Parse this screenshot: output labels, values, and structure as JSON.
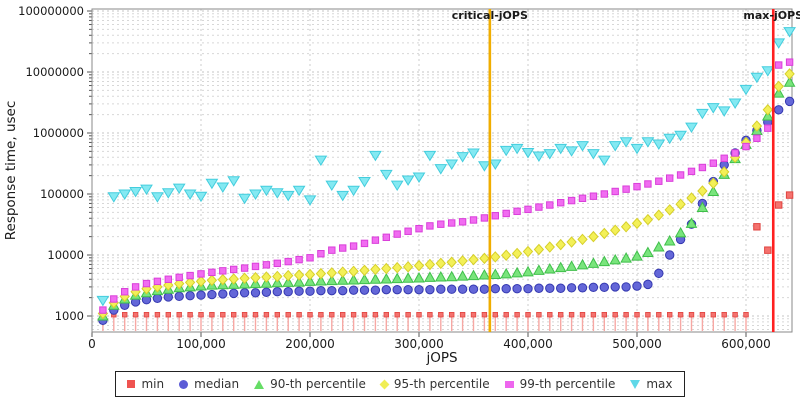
{
  "chart_data": {
    "type": "scatter",
    "title": "",
    "xlabel": "jOPS",
    "ylabel": "Response time, usec",
    "grid": true,
    "legend_position": "bottom",
    "x_scale": "linear",
    "y_scale": "log",
    "xlim": [
      0,
      642000
    ],
    "ylim": [
      547,
      126000000
    ],
    "x_ticks": [
      {
        "v": 0,
        "label": "0"
      },
      {
        "v": 100000,
        "label": "100,000"
      },
      {
        "v": 200000,
        "label": "200,000"
      },
      {
        "v": 300000,
        "label": "300,000"
      },
      {
        "v": 400000,
        "label": "400,000"
      },
      {
        "v": 500000,
        "label": "500,000"
      },
      {
        "v": 600000,
        "label": "600,000"
      }
    ],
    "y_ticks": [
      {
        "v": 1000,
        "label": "1000"
      },
      {
        "v": 10000,
        "label": "10000"
      },
      {
        "v": 100000,
        "label": "100000"
      },
      {
        "v": 1000000,
        "label": "1000000"
      },
      {
        "v": 10000000,
        "label": "10000000"
      },
      {
        "v": 100000000,
        "label": "100000000"
      }
    ],
    "vlines": [
      {
        "label": "critical-jOPS",
        "x": 365000,
        "color": "#f0ad00"
      },
      {
        "label": "max-jOPS",
        "x": 625000,
        "color": "#ff2020"
      }
    ],
    "x": [
      10000,
      20000,
      30000,
      40000,
      50000,
      60000,
      70000,
      80000,
      90000,
      100000,
      110000,
      120000,
      130000,
      140000,
      150000,
      160000,
      170000,
      180000,
      190000,
      200000,
      210000,
      220000,
      230000,
      240000,
      250000,
      260000,
      270000,
      280000,
      290000,
      300000,
      310000,
      320000,
      330000,
      340000,
      350000,
      360000,
      370000,
      380000,
      390000,
      400000,
      410000,
      420000,
      430000,
      440000,
      450000,
      460000,
      470000,
      480000,
      490000,
      500000,
      510000,
      520000,
      530000,
      540000,
      550000,
      560000,
      570000,
      580000,
      590000,
      600000,
      610000,
      620000,
      630000,
      640000
    ],
    "series": [
      {
        "name": "min",
        "marker": "pin-square",
        "fill": "#f4726e",
        "stroke": "#e04440",
        "stem": "#f7a8a4",
        "values": [
          1050,
          1050,
          1050,
          1050,
          1050,
          1050,
          1050,
          1050,
          1050,
          1050,
          1050,
          1050,
          1050,
          1050,
          1050,
          1050,
          1050,
          1050,
          1050,
          1050,
          1050,
          1050,
          1050,
          1050,
          1050,
          1050,
          1050,
          1050,
          1050,
          1050,
          1050,
          1050,
          1050,
          1050,
          1050,
          1050,
          1050,
          1050,
          1050,
          1050,
          1050,
          1050,
          1050,
          1050,
          1050,
          1050,
          1050,
          1050,
          1050,
          1050,
          1050,
          1050,
          1050,
          1050,
          1050,
          1050,
          1050,
          1050,
          1050,
          1050,
          29000,
          12000,
          66000,
          96000
        ]
      },
      {
        "name": "median",
        "marker": "circle",
        "fill": "#6467d8",
        "stroke": "#3438b0",
        "values": [
          850,
          1250,
          1500,
          1700,
          1850,
          1950,
          2050,
          2100,
          2150,
          2200,
          2250,
          2300,
          2350,
          2400,
          2400,
          2450,
          2500,
          2500,
          2550,
          2550,
          2600,
          2600,
          2600,
          2650,
          2650,
          2650,
          2700,
          2700,
          2700,
          2700,
          2700,
          2750,
          2750,
          2750,
          2750,
          2750,
          2800,
          2800,
          2800,
          2800,
          2850,
          2850,
          2850,
          2900,
          2900,
          2950,
          2950,
          3000,
          3000,
          3100,
          3300,
          5000,
          10000,
          18000,
          32000,
          70000,
          160000,
          300000,
          470000,
          760000,
          1100000,
          1500000,
          2400000,
          3300000
        ]
      },
      {
        "name": "90-th percentile",
        "marker": "triangle-up",
        "fill": "#79e47c",
        "stroke": "#3fbf4a",
        "values": [
          1000,
          1500,
          1900,
          2200,
          2400,
          2600,
          2750,
          2900,
          3000,
          3100,
          3200,
          3250,
          3300,
          3350,
          3400,
          3450,
          3500,
          3550,
          3600,
          3700,
          3750,
          3800,
          3850,
          3900,
          3950,
          4000,
          4050,
          4100,
          4150,
          4200,
          4300,
          4350,
          4400,
          4500,
          4600,
          4700,
          4800,
          4900,
          5100,
          5300,
          5600,
          5900,
          6200,
          6500,
          6900,
          7300,
          7800,
          8300,
          8900,
          9600,
          11000,
          13500,
          17000,
          23000,
          33000,
          60000,
          110000,
          210000,
          380000,
          650000,
          1100000,
          1900000,
          4500000,
          6800000
        ]
      },
      {
        "name": "95-th percentile",
        "marker": "diamond",
        "fill": "#f3f058",
        "stroke": "#d6cf2a",
        "values": [
          1100,
          1650,
          2100,
          2500,
          2800,
          3000,
          3200,
          3400,
          3550,
          3700,
          3850,
          3950,
          4050,
          4150,
          4250,
          4350,
          4450,
          4600,
          4700,
          4800,
          4950,
          5100,
          5250,
          5400,
          5600,
          5800,
          6000,
          6200,
          6400,
          6700,
          7000,
          7300,
          7600,
          8000,
          8400,
          8800,
          9300,
          9900,
          10600,
          11400,
          12300,
          13500,
          14800,
          16300,
          18000,
          20000,
          22500,
          25500,
          29000,
          33000,
          38000,
          45000,
          55000,
          68000,
          86000,
          112000,
          150000,
          230000,
          400000,
          700000,
          1300000,
          2400000,
          5800000,
          9300000
        ]
      },
      {
        "name": "99-th percentile",
        "marker": "square",
        "fill": "#f16cf1",
        "stroke": "#d93fd9",
        "values": [
          1250,
          1900,
          2500,
          3000,
          3400,
          3700,
          4000,
          4300,
          4600,
          4900,
          5200,
          5500,
          5800,
          6100,
          6500,
          6900,
          7300,
          7800,
          8400,
          9000,
          10500,
          12000,
          13000,
          14000,
          15500,
          17500,
          19500,
          22000,
          24500,
          27000,
          30000,
          32000,
          33500,
          35000,
          37500,
          40500,
          44000,
          48000,
          52000,
          56000,
          61000,
          66000,
          72000,
          78000,
          85000,
          92000,
          100000,
          110000,
          120000,
          132000,
          146000,
          162000,
          182000,
          205000,
          235000,
          272000,
          320000,
          385000,
          470000,
          600000,
          820000,
          1200000,
          13000000,
          14500000
        ]
      },
      {
        "name": "max",
        "marker": "triangle-down",
        "fill": "#84e9f2",
        "stroke": "#43cddd",
        "values": [
          1800,
          90000,
          100000,
          110000,
          120000,
          90000,
          105000,
          125000,
          100000,
          92000,
          150000,
          130000,
          165000,
          85000,
          100000,
          115000,
          105000,
          95000,
          115000,
          80000,
          360000,
          140000,
          95000,
          115000,
          160000,
          430000,
          210000,
          140000,
          170000,
          190000,
          430000,
          260000,
          310000,
          410000,
          470000,
          290000,
          310000,
          520000,
          560000,
          480000,
          420000,
          460000,
          560000,
          510000,
          620000,
          460000,
          360000,
          620000,
          720000,
          560000,
          720000,
          660000,
          820000,
          920000,
          1250000,
          2100000,
          2600000,
          2300000,
          3100000,
          5200000,
          8200000,
          10500000,
          30000000,
          46000000
        ]
      }
    ]
  },
  "legend": {
    "items": [
      {
        "label": "min",
        "marker": "square",
        "color": "#ef5350"
      },
      {
        "label": "median",
        "marker": "circle",
        "color": "#5c5cd6"
      },
      {
        "label": "90-th percentile",
        "marker": "tri-up",
        "color": "#66dd66"
      },
      {
        "label": "95-th percentile",
        "marker": "diamond",
        "color": "#f0ee55"
      },
      {
        "label": "99-th percentile",
        "marker": "rect",
        "color": "#ee66ee"
      },
      {
        "label": "max",
        "marker": "tri-down",
        "color": "#5fd8e8"
      }
    ]
  },
  "style": {
    "grid_major": "#c4c4c4",
    "grid_minor": "#d7d7d7",
    "grid_vert": "#cccccc",
    "border": "#8a8a8a",
    "tick": "#555555",
    "text": "#1a1a1a"
  }
}
